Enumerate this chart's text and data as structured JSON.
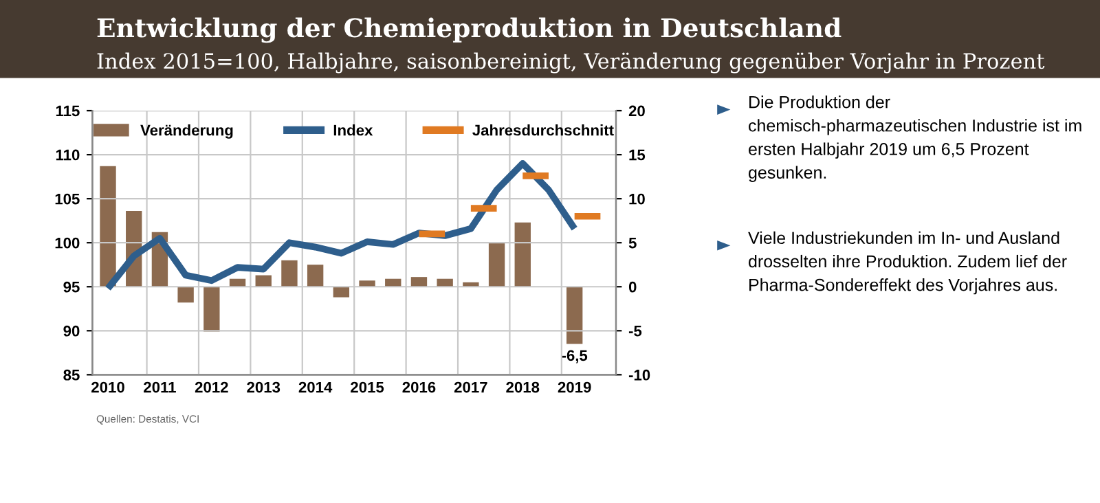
{
  "chart_data": [
    {
      "type": "bar",
      "title": "Entwicklung der Chemieproduktion in Deutschland",
      "subtitle": "Index 2015=100, Halbjahre, saisonbereinigt, Veränderung gegenüber Vorjahr in Prozent",
      "categories": [
        "2010",
        null,
        "2011",
        null,
        "2012",
        null,
        "2013",
        null,
        "2014",
        null,
        "2015",
        null,
        "2016",
        null,
        "2017",
        null,
        "2018",
        null,
        "2019",
        null
      ],
      "series": [
        {
          "name": "Veränderung",
          "type": "bar",
          "axis": "y2",
          "color": "#8c6a4f",
          "values": [
            13.7,
            8.6,
            6.2,
            -1.8,
            -5.1,
            0.9,
            1.3,
            3.0,
            2.5,
            -1.2,
            0.7,
            0.9,
            1.1,
            0.9,
            0.5,
            5.1,
            7.3,
            null,
            -6.5,
            null
          ],
          "value_labels": [
            null,
            null,
            null,
            null,
            null,
            null,
            null,
            null,
            null,
            null,
            null,
            null,
            null,
            null,
            null,
            null,
            null,
            null,
            "-6,5",
            null
          ]
        },
        {
          "name": "Index",
          "type": "line",
          "color": "#2e5e8c",
          "values": [
            94.8,
            98.5,
            100.5,
            96.3,
            95.7,
            97.2,
            97.0,
            100.0,
            99.5,
            98.8,
            100.1,
            99.8,
            101.1,
            100.8,
            101.6,
            106.0,
            109.0,
            106.0,
            101.6,
            null
          ]
        },
        {
          "name": "Jahresdurchschnitt",
          "type": "line",
          "color": "#e07a22",
          "values": [
            null,
            null,
            null,
            null,
            null,
            null,
            null,
            null,
            null,
            null,
            null,
            null,
            101.0,
            101.0,
            null,
            null,
            null,
            null,
            null,
            null
          ]
        },
        {
          "type": "line",
          "color": "#e07a22",
          "values": [
            null,
            null,
            null,
            null,
            null,
            null,
            null,
            null,
            null,
            null,
            null,
            null,
            null,
            null,
            103.9,
            103.9,
            null,
            null,
            null,
            null
          ]
        },
        {
          "type": "line",
          "color": "#e07a22",
          "values": [
            null,
            null,
            null,
            null,
            null,
            null,
            null,
            null,
            null,
            null,
            null,
            null,
            null,
            null,
            null,
            null,
            107.6,
            107.6,
            null,
            null
          ]
        },
        {
          "type": "line",
          "color": "#e07a22",
          "values": [
            null,
            null,
            null,
            null,
            null,
            null,
            null,
            null,
            null,
            null,
            null,
            null,
            null,
            null,
            null,
            null,
            null,
            null,
            103.0,
            103.0
          ]
        }
      ],
      "ylim": [
        85,
        115
      ],
      "yticks": [
        85,
        90,
        95,
        100,
        105,
        110,
        115
      ],
      "y2lim": [
        -10,
        20
      ],
      "y2ticks": [
        -10,
        -5,
        0,
        5,
        10,
        15,
        20
      ],
      "grid": true,
      "legend": "top",
      "annotations": [
        "Quellen: Destatis, VCI"
      ]
    },
    {
      "type": "other",
      "annotations": [
        "Die Produktion der chemisch-pharmazeutischen Industrie ist im ersten Halbjahr 2019 um 6,5 Prozent gesunken.",
        "Viele Industriekunden im In- und Ausland drosselten ihre Produktion. Zudem lief der Pharma-Sondereffekt des Vorjahres aus."
      ]
    }
  ]
}
